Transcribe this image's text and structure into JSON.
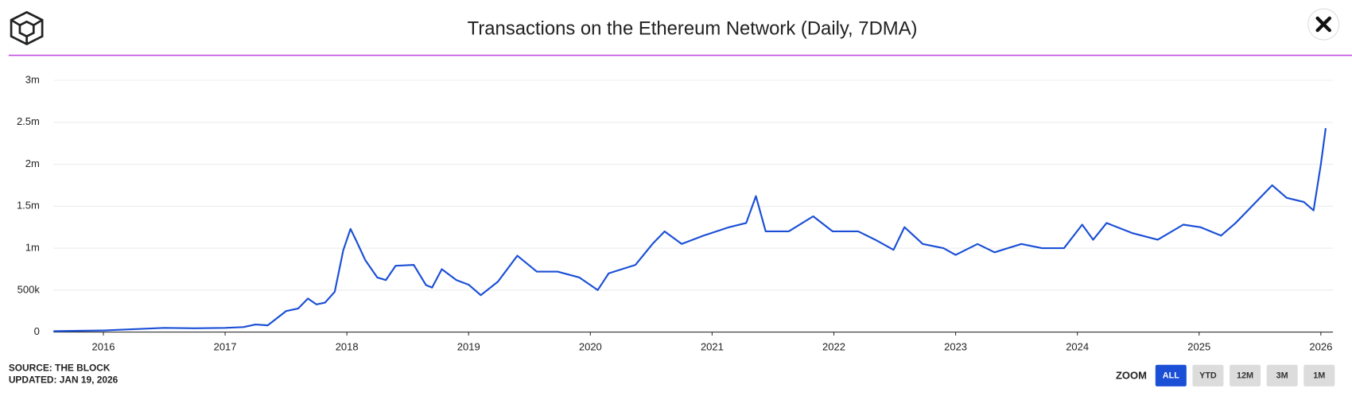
{
  "chart_data": {
    "type": "line",
    "title": "Transactions on the Ethereum Network (Daily, 7DMA)",
    "x": [
      2015.59,
      2015.8,
      2016.0,
      2016.25,
      2016.5,
      2016.75,
      2017.0,
      2017.15,
      2017.25,
      2017.35,
      2017.5,
      2017.6,
      2017.68,
      2017.75,
      2017.82,
      2017.9,
      2017.97,
      2018.03,
      2018.08,
      2018.15,
      2018.25,
      2018.32,
      2018.4,
      2018.55,
      2018.65,
      2018.7,
      2018.78,
      2018.9,
      2019.0,
      2019.1,
      2019.24,
      2019.4,
      2019.56,
      2019.73,
      2019.91,
      2020.06,
      2020.15,
      2020.37,
      2020.51,
      2020.61,
      2020.75,
      2020.93,
      2021.14,
      2021.28,
      2021.36,
      2021.44,
      2021.63,
      2021.83,
      2021.99,
      2022.2,
      2022.34,
      2022.49,
      2022.58,
      2022.73,
      2022.9,
      2023.0,
      2023.18,
      2023.32,
      2023.54,
      2023.71,
      2023.89,
      2024.04,
      2024.13,
      2024.24,
      2024.45,
      2024.66,
      2024.87,
      2025.01,
      2025.18,
      2025.3,
      2025.4,
      2025.6,
      2025.72,
      2025.86,
      2025.94,
      2026.0,
      2026.04
    ],
    "values": [
      10000,
      15000,
      20000,
      35000,
      50000,
      45000,
      50000,
      60000,
      90000,
      80000,
      250000,
      280000,
      400000,
      330000,
      350000,
      480000,
      975000,
      1230000,
      1080000,
      860000,
      650000,
      620000,
      790000,
      800000,
      560000,
      530000,
      750000,
      620000,
      565000,
      440000,
      600000,
      910000,
      720000,
      720000,
      650000,
      500000,
      700000,
      800000,
      1050000,
      1200000,
      1050000,
      1150000,
      1250000,
      1300000,
      1620000,
      1200000,
      1200000,
      1380000,
      1200000,
      1200000,
      1100000,
      980000,
      1250000,
      1050000,
      1000000,
      920000,
      1050000,
      950000,
      1050000,
      1000000,
      1000000,
      1280000,
      1100000,
      1300000,
      1180000,
      1100000,
      1280000,
      1250000,
      1150000,
      1300000,
      1450000,
      1750000,
      1600000,
      1550000,
      1450000,
      2000000,
      2430000
    ],
    "color": "#1a4fd6",
    "xlim": [
      2015.59,
      2026.1
    ],
    "xticks": [
      2016,
      2017,
      2018,
      2019,
      2020,
      2021,
      2022,
      2023,
      2024,
      2025,
      2026
    ],
    "ylim": [
      0,
      3000000
    ],
    "yticks": [
      0,
      {
        "value": 500000,
        "label": "500k"
      },
      {
        "value": 1000000,
        "label": "1m"
      },
      {
        "value": 1500000,
        "label": "1.5m"
      },
      {
        "value": 2000000,
        "label": "2m"
      },
      {
        "value": 2500000,
        "label": "2.5m"
      },
      {
        "value": 3000000,
        "label": "3m"
      }
    ],
    "grid": true
  },
  "footer": {
    "source": "SOURCE: THE BLOCK",
    "updated": "UPDATED: JAN 19, 2026"
  },
  "zoom": {
    "label": "ZOOM",
    "buttons": [
      "ALL",
      "YTD",
      "12M",
      "3M",
      "1M"
    ],
    "active": 0
  }
}
